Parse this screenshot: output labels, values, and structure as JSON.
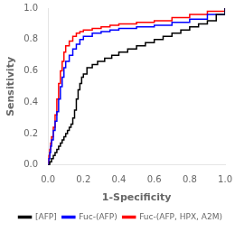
{
  "chart_data": {
    "type": "line",
    "xlabel": "1-Specificity",
    "ylabel": "Sensitivity",
    "xlim": [
      0.0,
      1.0
    ],
    "ylim": [
      0.0,
      1.0
    ],
    "xticks": [
      {
        "value": 0.0,
        "label": "0.0"
      },
      0.2,
      0.4,
      0.6,
      0.8,
      {
        "value": 1.0,
        "label": "1.0"
      }
    ],
    "yticks": [
      {
        "value": 0.0,
        "label": "0.0"
      },
      0.2,
      0.4,
      0.6,
      0.8,
      {
        "value": 1.0,
        "label": "1.0"
      }
    ],
    "grid": false,
    "legend": "lower right",
    "series": [
      {
        "name": "[AFP]",
        "color": "black",
        "x": [
          0.0,
          0.01,
          0.01,
          0.02,
          0.02,
          0.03,
          0.03,
          0.04,
          0.04,
          0.05,
          0.05,
          0.06,
          0.06,
          0.07,
          0.07,
          0.08,
          0.08,
          0.09,
          0.09,
          0.1,
          0.1,
          0.11,
          0.11,
          0.12,
          0.12,
          0.13,
          0.13,
          0.14,
          0.14,
          0.15,
          0.15,
          0.16,
          0.16,
          0.17,
          0.17,
          0.18,
          0.18,
          0.19,
          0.19,
          0.2,
          0.2,
          0.22,
          0.22,
          0.25,
          0.25,
          0.28,
          0.28,
          0.32,
          0.32,
          0.36,
          0.36,
          0.4,
          0.4,
          0.45,
          0.45,
          0.5,
          0.5,
          0.55,
          0.55,
          0.6,
          0.6,
          0.65,
          0.65,
          0.7,
          0.7,
          0.75,
          0.75,
          0.8,
          0.8,
          0.85,
          0.85,
          0.9,
          0.9,
          0.95,
          0.95,
          1.0,
          1.0
        ],
        "values": [
          0.0,
          0.0,
          0.02,
          0.02,
          0.04,
          0.04,
          0.06,
          0.06,
          0.08,
          0.08,
          0.1,
          0.1,
          0.12,
          0.12,
          0.14,
          0.14,
          0.16,
          0.16,
          0.18,
          0.18,
          0.2,
          0.2,
          0.22,
          0.22,
          0.24,
          0.24,
          0.26,
          0.26,
          0.3,
          0.3,
          0.35,
          0.35,
          0.42,
          0.42,
          0.48,
          0.48,
          0.52,
          0.52,
          0.56,
          0.56,
          0.58,
          0.58,
          0.62,
          0.62,
          0.64,
          0.64,
          0.66,
          0.66,
          0.68,
          0.68,
          0.7,
          0.7,
          0.72,
          0.72,
          0.74,
          0.74,
          0.76,
          0.76,
          0.78,
          0.78,
          0.8,
          0.8,
          0.82,
          0.82,
          0.84,
          0.84,
          0.86,
          0.86,
          0.88,
          0.88,
          0.9,
          0.9,
          0.92,
          0.92,
          0.96,
          0.96,
          1.0
        ]
      },
      {
        "name": "Fuc-(AFP)",
        "color": "blue",
        "x": [
          0.0,
          0.005,
          0.005,
          0.01,
          0.01,
          0.015,
          0.015,
          0.02,
          0.02,
          0.03,
          0.03,
          0.04,
          0.04,
          0.05,
          0.05,
          0.06,
          0.06,
          0.07,
          0.07,
          0.08,
          0.08,
          0.09,
          0.09,
          0.1,
          0.1,
          0.12,
          0.12,
          0.14,
          0.14,
          0.16,
          0.16,
          0.18,
          0.18,
          0.2,
          0.2,
          0.25,
          0.25,
          0.3,
          0.3,
          0.35,
          0.35,
          0.4,
          0.4,
          0.5,
          0.5,
          0.6,
          0.6,
          0.7,
          0.7,
          0.8,
          0.8,
          0.9,
          0.9,
          1.0,
          1.0
        ],
        "values": [
          0.0,
          0.0,
          0.04,
          0.04,
          0.08,
          0.08,
          0.12,
          0.12,
          0.16,
          0.16,
          0.22,
          0.22,
          0.28,
          0.28,
          0.34,
          0.34,
          0.42,
          0.42,
          0.5,
          0.5,
          0.56,
          0.56,
          0.62,
          0.62,
          0.66,
          0.66,
          0.7,
          0.7,
          0.74,
          0.74,
          0.77,
          0.77,
          0.8,
          0.8,
          0.82,
          0.82,
          0.84,
          0.84,
          0.85,
          0.85,
          0.86,
          0.86,
          0.87,
          0.87,
          0.88,
          0.88,
          0.89,
          0.89,
          0.91,
          0.91,
          0.93,
          0.93,
          0.96,
          0.96,
          1.0
        ]
      },
      {
        "name": "Fuc-(AFP, HPX, A2M)",
        "color": "red",
        "x": [
          0.0,
          0.005,
          0.005,
          0.01,
          0.01,
          0.015,
          0.015,
          0.02,
          0.02,
          0.03,
          0.03,
          0.04,
          0.04,
          0.05,
          0.05,
          0.06,
          0.06,
          0.07,
          0.07,
          0.08,
          0.08,
          0.09,
          0.09,
          0.1,
          0.1,
          0.12,
          0.12,
          0.14,
          0.14,
          0.16,
          0.16,
          0.18,
          0.18,
          0.2,
          0.2,
          0.25,
          0.25,
          0.3,
          0.3,
          0.35,
          0.35,
          0.4,
          0.4,
          0.5,
          0.5,
          0.6,
          0.6,
          0.7,
          0.7,
          0.8,
          0.8,
          0.9,
          0.9,
          1.0,
          1.0
        ],
        "values": [
          0.0,
          0.0,
          0.06,
          0.06,
          0.1,
          0.1,
          0.14,
          0.14,
          0.18,
          0.18,
          0.24,
          0.24,
          0.32,
          0.32,
          0.42,
          0.42,
          0.52,
          0.52,
          0.6,
          0.6,
          0.66,
          0.66,
          0.72,
          0.72,
          0.76,
          0.76,
          0.79,
          0.79,
          0.82,
          0.82,
          0.84,
          0.84,
          0.85,
          0.85,
          0.86,
          0.86,
          0.87,
          0.87,
          0.88,
          0.88,
          0.89,
          0.89,
          0.9,
          0.9,
          0.91,
          0.91,
          0.92,
          0.92,
          0.94,
          0.94,
          0.96,
          0.96,
          0.98,
          0.98,
          1.0
        ]
      }
    ]
  }
}
